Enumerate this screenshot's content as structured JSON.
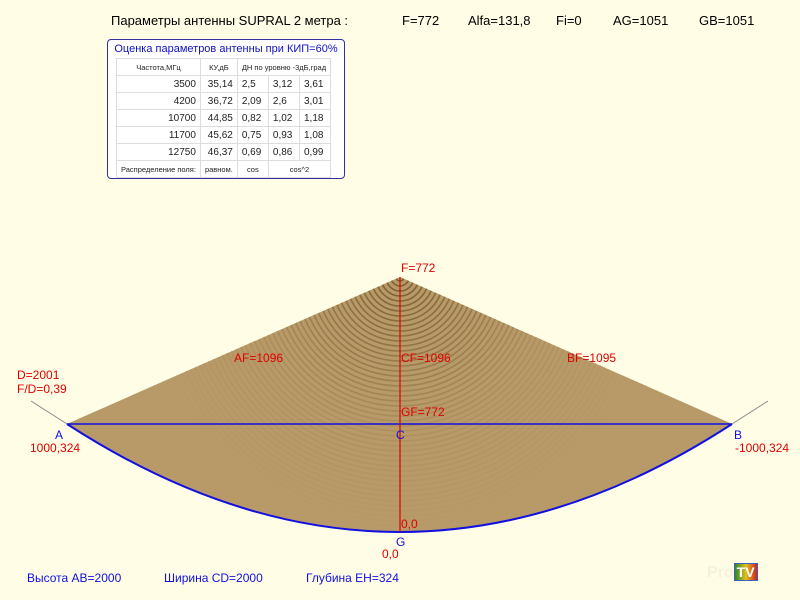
{
  "header": {
    "title": "Параметры  антенны  SUPRAL 2 метра :",
    "F": "F=772",
    "Alfa": "Alfa=131,8",
    "Fi": "Fi=0",
    "AG": "AG=1051",
    "GB": "GB=1051"
  },
  "table": {
    "title": "Оценка параметров антенны при КИП=60%",
    "headers": [
      "Частота,МГц",
      "КУ,дБ",
      "ДН по уровню -3дБ,град"
    ],
    "rows": [
      [
        "3500",
        "35,14",
        "2,5",
        "3,12",
        "3,61"
      ],
      [
        "4200",
        "36,72",
        "2,09",
        "2,6",
        "3,01"
      ],
      [
        "10700",
        "44,85",
        "0,82",
        "1,02",
        "1,18"
      ],
      [
        "11700",
        "45,62",
        "0,75",
        "0,93",
        "1,08"
      ],
      [
        "12750",
        "46,37",
        "0,69",
        "0,86",
        "0,99"
      ]
    ],
    "footer": [
      "Распределение поля:",
      "равном.",
      "cos",
      "cos^2"
    ]
  },
  "diagram": {
    "F": "F=772",
    "AF": "AF=1096",
    "CF": "CF=1096",
    "BF": "BF=1095",
    "D": "D=2001",
    "FD": "F/D=0,39",
    "GF": "GF=772",
    "A": "A",
    "A_coord": "1000,324",
    "B": "B",
    "B_coord": "-1000,324",
    "C": "C",
    "G": "G",
    "G_coord": "0,0",
    "G_top": "0,0",
    "dish_color": "#b89a68",
    "line_color": "#1010e0",
    "axis_color": "#e00000"
  },
  "footer": {
    "height": "Высота AB=2000",
    "width": "Ширина CD=2000",
    "depth": "Глубина EH=324"
  },
  "logo": {
    "text1": "Pro",
    "text2": "TV"
  }
}
